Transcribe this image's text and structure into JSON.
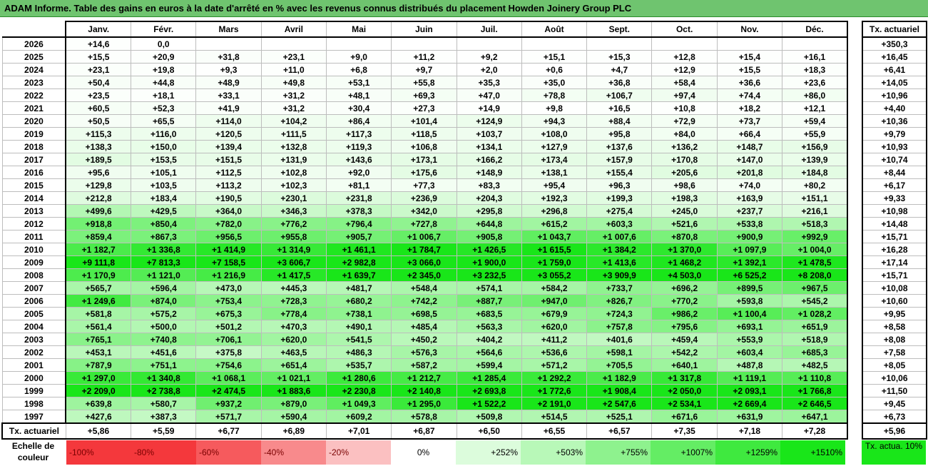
{
  "title": "ADAM Informe. Table des gains en euros à la date d'arrêté en % avec les revenus connus distribués du placement Howden Joinery Group PLC",
  "months": [
    "Janv.",
    "Févr.",
    "Mars",
    "Avril",
    "Mai",
    "Juin",
    "Juil.",
    "Août",
    "Sept.",
    "Oct.",
    "Nov.",
    "Déc."
  ],
  "side_header": "Tx. actuariel",
  "rows": [
    {
      "year": "2026",
      "vals": [
        "+14,6",
        "0,0",
        "",
        "",
        "",
        "",
        "",
        "",
        "",
        "",
        "",
        ""
      ],
      "rate": "+350,3"
    },
    {
      "year": "2025",
      "vals": [
        "+15,5",
        "+20,9",
        "+31,8",
        "+23,1",
        "+9,0",
        "+11,2",
        "+9,2",
        "+15,1",
        "+15,3",
        "+12,8",
        "+15,4",
        "+16,1"
      ],
      "rate": "+16,45"
    },
    {
      "year": "2024",
      "vals": [
        "+23,1",
        "+19,8",
        "+9,3",
        "+11,0",
        "+6,8",
        "+9,7",
        "+2,0",
        "+0,6",
        "+4,7",
        "+12,9",
        "+15,5",
        "+18,3"
      ],
      "rate": "+6,41"
    },
    {
      "year": "2023",
      "vals": [
        "+50,4",
        "+44,8",
        "+48,9",
        "+49,8",
        "+53,1",
        "+55,8",
        "+35,3",
        "+35,0",
        "+36,8",
        "+58,4",
        "+36,6",
        "+23,6"
      ],
      "rate": "+14,05"
    },
    {
      "year": "2022",
      "vals": [
        "+23,5",
        "+18,1",
        "+33,1",
        "+31,2",
        "+48,1",
        "+69,3",
        "+47,0",
        "+78,8",
        "+106,7",
        "+97,4",
        "+74,4",
        "+86,0"
      ],
      "rate": "+10,96"
    },
    {
      "year": "2021",
      "vals": [
        "+60,5",
        "+52,3",
        "+41,9",
        "+31,2",
        "+30,4",
        "+27,3",
        "+14,9",
        "+9,8",
        "+16,5",
        "+10,8",
        "+18,2",
        "+12,1"
      ],
      "rate": "+4,40"
    },
    {
      "year": "2020",
      "vals": [
        "+50,5",
        "+65,5",
        "+114,0",
        "+104,2",
        "+86,4",
        "+101,4",
        "+124,9",
        "+94,3",
        "+88,4",
        "+72,9",
        "+73,7",
        "+59,4"
      ],
      "rate": "+10,36"
    },
    {
      "year": "2019",
      "vals": [
        "+115,3",
        "+116,0",
        "+120,5",
        "+111,5",
        "+117,3",
        "+118,5",
        "+103,7",
        "+108,0",
        "+95,8",
        "+84,0",
        "+66,4",
        "+55,9"
      ],
      "rate": "+9,79"
    },
    {
      "year": "2018",
      "vals": [
        "+138,3",
        "+150,0",
        "+139,4",
        "+132,8",
        "+119,3",
        "+106,8",
        "+134,1",
        "+127,9",
        "+137,6",
        "+136,2",
        "+148,7",
        "+156,9"
      ],
      "rate": "+10,93"
    },
    {
      "year": "2017",
      "vals": [
        "+189,5",
        "+153,5",
        "+151,5",
        "+131,9",
        "+143,6",
        "+173,1",
        "+166,2",
        "+173,4",
        "+157,9",
        "+170,8",
        "+147,0",
        "+139,9"
      ],
      "rate": "+10,74"
    },
    {
      "year": "2016",
      "vals": [
        "+95,6",
        "+105,1",
        "+112,5",
        "+102,8",
        "+92,0",
        "+175,6",
        "+148,9",
        "+138,1",
        "+155,4",
        "+205,6",
        "+201,8",
        "+184,8"
      ],
      "rate": "+8,44"
    },
    {
      "year": "2015",
      "vals": [
        "+129,8",
        "+103,5",
        "+113,2",
        "+102,3",
        "+81,1",
        "+77,3",
        "+83,3",
        "+95,4",
        "+96,3",
        "+98,6",
        "+74,0",
        "+80,2"
      ],
      "rate": "+6,17"
    },
    {
      "year": "2014",
      "vals": [
        "+212,8",
        "+183,4",
        "+190,5",
        "+230,1",
        "+231,8",
        "+236,9",
        "+204,3",
        "+192,3",
        "+199,3",
        "+198,3",
        "+163,9",
        "+151,1"
      ],
      "rate": "+9,33"
    },
    {
      "year": "2013",
      "vals": [
        "+499,6",
        "+429,5",
        "+364,0",
        "+346,3",
        "+378,3",
        "+342,0",
        "+295,8",
        "+296,8",
        "+275,4",
        "+245,0",
        "+237,7",
        "+216,1"
      ],
      "rate": "+10,98"
    },
    {
      "year": "2012",
      "vals": [
        "+918,8",
        "+850,4",
        "+782,0",
        "+776,2",
        "+796,4",
        "+727,8",
        "+644,8",
        "+615,2",
        "+603,3",
        "+521,6",
        "+533,8",
        "+518,3"
      ],
      "rate": "+14,48"
    },
    {
      "year": "2011",
      "vals": [
        "+859,4",
        "+867,3",
        "+956,5",
        "+955,8",
        "+905,7",
        "+1 006,7",
        "+905,8",
        "+1 043,7",
        "+1 007,6",
        "+870,8",
        "+900,9",
        "+992,9"
      ],
      "rate": "+15,71"
    },
    {
      "year": "2010",
      "vals": [
        "+1 182,7",
        "+1 336,8",
        "+1 414,9",
        "+1 314,9",
        "+1 461,1",
        "+1 784,7",
        "+1 426,5",
        "+1 615,5",
        "+1 384,2",
        "+1 370,0",
        "+1 097,9",
        "+1 004,0"
      ],
      "rate": "+16,28"
    },
    {
      "year": "2009",
      "vals": [
        "+9 111,8",
        "+7 813,3",
        "+7 158,5",
        "+3 606,7",
        "+2 982,8",
        "+3 066,0",
        "+1 900,0",
        "+1 759,0",
        "+1 413,6",
        "+1 468,2",
        "+1 392,1",
        "+1 478,5"
      ],
      "rate": "+17,14"
    },
    {
      "year": "2008",
      "vals": [
        "+1 170,9",
        "+1 121,0",
        "+1 216,9",
        "+1 417,5",
        "+1 639,7",
        "+2 345,0",
        "+3 232,5",
        "+3 055,2",
        "+3 909,9",
        "+4 503,0",
        "+6 525,2",
        "+8 208,0"
      ],
      "rate": "+15,71"
    },
    {
      "year": "2007",
      "vals": [
        "+565,7",
        "+596,4",
        "+473,0",
        "+445,3",
        "+481,7",
        "+548,4",
        "+574,1",
        "+584,2",
        "+733,7",
        "+696,2",
        "+899,5",
        "+967,5"
      ],
      "rate": "+10,08"
    },
    {
      "year": "2006",
      "vals": [
        "+1 249,6",
        "+874,0",
        "+753,4",
        "+728,3",
        "+680,2",
        "+742,2",
        "+887,7",
        "+947,0",
        "+826,7",
        "+770,2",
        "+593,8",
        "+545,2"
      ],
      "rate": "+10,60"
    },
    {
      "year": "2005",
      "vals": [
        "+581,8",
        "+575,2",
        "+675,3",
        "+778,4",
        "+738,1",
        "+698,5",
        "+683,5",
        "+679,9",
        "+724,3",
        "+986,2",
        "+1 100,4",
        "+1 028,2"
      ],
      "rate": "+9,95"
    },
    {
      "year": "2004",
      "vals": [
        "+561,4",
        "+500,0",
        "+501,2",
        "+470,3",
        "+490,1",
        "+485,4",
        "+563,3",
        "+620,0",
        "+757,8",
        "+795,6",
        "+693,1",
        "+651,9"
      ],
      "rate": "+8,58"
    },
    {
      "year": "2003",
      "vals": [
        "+765,1",
        "+740,8",
        "+706,1",
        "+620,0",
        "+541,5",
        "+450,2",
        "+404,2",
        "+411,2",
        "+401,6",
        "+459,4",
        "+553,9",
        "+518,9"
      ],
      "rate": "+8,08"
    },
    {
      "year": "2002",
      "vals": [
        "+453,1",
        "+451,6",
        "+375,8",
        "+463,5",
        "+486,3",
        "+576,3",
        "+564,6",
        "+536,6",
        "+598,1",
        "+542,2",
        "+603,4",
        "+685,3"
      ],
      "rate": "+7,58"
    },
    {
      "year": "2001",
      "vals": [
        "+787,9",
        "+751,1",
        "+754,6",
        "+651,4",
        "+535,7",
        "+587,2",
        "+599,4",
        "+571,2",
        "+705,5",
        "+640,1",
        "+487,8",
        "+482,5"
      ],
      "rate": "+8,05"
    },
    {
      "year": "2000",
      "vals": [
        "+1 297,0",
        "+1 340,8",
        "+1 068,1",
        "+1 021,1",
        "+1 280,6",
        "+1 212,7",
        "+1 285,4",
        "+1 292,2",
        "+1 182,9",
        "+1 317,8",
        "+1 119,1",
        "+1 110,8"
      ],
      "rate": "+10,06"
    },
    {
      "year": "1999",
      "vals": [
        "+2 209,0",
        "+2 738,8",
        "+2 474,5",
        "+1 883,6",
        "+2 230,8",
        "+2 140,8",
        "+2 693,8",
        "+1 772,6",
        "+1 908,4",
        "+2 050,0",
        "+2 093,1",
        "+1 766,8"
      ],
      "rate": "+11,50"
    },
    {
      "year": "1998",
      "vals": [
        "+639,8",
        "+580,7",
        "+937,2",
        "+879,0",
        "+1 049,3",
        "+1 295,0",
        "+1 522,2",
        "+2 191,0",
        "+2 547,6",
        "+2 534,1",
        "+2 669,4",
        "+2 646,5"
      ],
      "rate": "+9,45"
    },
    {
      "year": "1997",
      "vals": [
        "+427,6",
        "+387,3",
        "+571,7",
        "+590,4",
        "+609,2",
        "+578,8",
        "+509,8",
        "+514,5",
        "+525,1",
        "+671,6",
        "+631,9",
        "+647,1"
      ],
      "rate": "+6,73"
    }
  ],
  "footer_label": "Tx. actuariel",
  "footer_vals": [
    "+5,86",
    "+5,59",
    "+6,77",
    "+6,89",
    "+7,01",
    "+6,87",
    "+6,50",
    "+6,55",
    "+6,57",
    "+7,35",
    "+7,18",
    "+7,28"
  ],
  "footer_rate": "+5,96",
  "legend_label": "Echelle de couleur",
  "legend": [
    {
      "text": "-100%",
      "color": "#f4383c",
      "kind": "neg"
    },
    {
      "text": "-80%",
      "color": "#f4383c",
      "kind": "neg"
    },
    {
      "text": "-60%",
      "color": "#f65a5d",
      "kind": "neg"
    },
    {
      "text": "-40%",
      "color": "#f88a8c",
      "kind": "neg"
    },
    {
      "text": "-20%",
      "color": "#fbc0c1",
      "kind": "neg"
    },
    {
      "text": "0%",
      "color": "#ffffff",
      "kind": "zero"
    },
    {
      "text": "+252%",
      "color": "#dcfcdc",
      "kind": "pos"
    },
    {
      "text": "+503%",
      "color": "#b8f8b8",
      "kind": "pos"
    },
    {
      "text": "+755%",
      "color": "#8ef28e",
      "kind": "pos"
    },
    {
      "text": "+1007%",
      "color": "#64ed64",
      "kind": "pos"
    },
    {
      "text": "+1259%",
      "color": "#3fe93f",
      "kind": "pos"
    },
    {
      "text": "+1510%",
      "color": "#19e619",
      "kind": "pos"
    }
  ],
  "side_legend": "Tx. actua. 10%"
}
